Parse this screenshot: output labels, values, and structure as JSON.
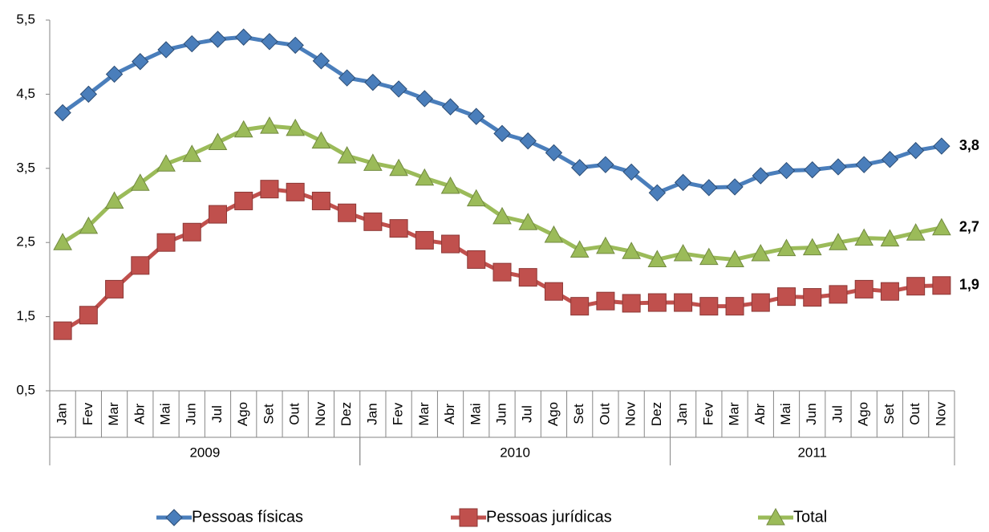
{
  "chart_data": {
    "type": "line",
    "categories": [
      "Jan",
      "Fev",
      "Mar",
      "Abr",
      "Mai",
      "Jun",
      "Jul",
      "Ago",
      "Set",
      "Out",
      "Nov",
      "Dez",
      "Jan",
      "Fev",
      "Mar",
      "Abr",
      "Mai",
      "Jun",
      "Jul",
      "Ago",
      "Set",
      "Out",
      "Nov",
      "Dez",
      "Jan",
      "Fev",
      "Mar",
      "Abr",
      "Mai",
      "Jun",
      "Jul",
      "Ago",
      "Set",
      "Out",
      "Nov"
    ],
    "year_groups": [
      {
        "label": "2009",
        "count": 12
      },
      {
        "label": "2010",
        "count": 12
      },
      {
        "label": "2011",
        "count": 11
      }
    ],
    "ylim": [
      0.5,
      5.5
    ],
    "yticks": [
      {
        "value": 0.5,
        "label": "0,5"
      },
      {
        "value": 1.5,
        "label": "1,5"
      },
      {
        "value": 2.5,
        "label": "2,5"
      },
      {
        "value": 3.5,
        "label": "3,5"
      },
      {
        "value": 4.5,
        "label": "4,5"
      },
      {
        "value": 5.5,
        "label": "5,5"
      }
    ],
    "grid": false,
    "legend": "bottom",
    "series": [
      {
        "name": "Pessoas físicas",
        "color": "#4a7ebb",
        "marker": "diamond",
        "values": [
          4.25,
          4.5,
          4.77,
          4.94,
          5.1,
          5.18,
          5.24,
          5.27,
          5.21,
          5.16,
          4.95,
          4.72,
          4.66,
          4.57,
          4.44,
          4.33,
          4.2,
          3.97,
          3.87,
          3.71,
          3.51,
          3.55,
          3.45,
          3.17,
          3.31,
          3.24,
          3.25,
          3.4,
          3.47,
          3.48,
          3.52,
          3.55,
          3.62,
          3.74,
          3.8
        ],
        "value_labels": [
          null,
          null,
          null,
          null,
          null,
          null,
          null,
          null,
          null,
          null,
          null,
          null,
          null,
          null,
          null,
          null,
          null,
          null,
          null,
          null,
          null,
          null,
          null,
          null,
          null,
          null,
          null,
          null,
          null,
          null,
          null,
          null,
          null,
          null,
          "3,8"
        ]
      },
      {
        "name": "Pessoas jurídicas",
        "color": "#c0504d",
        "marker": "square",
        "values": [
          1.31,
          1.52,
          1.87,
          2.19,
          2.5,
          2.64,
          2.88,
          3.06,
          3.22,
          3.18,
          3.06,
          2.9,
          2.78,
          2.69,
          2.53,
          2.48,
          2.27,
          2.1,
          2.03,
          1.84,
          1.64,
          1.71,
          1.68,
          1.69,
          1.69,
          1.64,
          1.64,
          1.69,
          1.77,
          1.76,
          1.8,
          1.87,
          1.84,
          1.91,
          1.92
        ],
        "value_labels": [
          null,
          null,
          null,
          null,
          null,
          null,
          null,
          null,
          null,
          null,
          null,
          null,
          null,
          null,
          null,
          null,
          null,
          null,
          null,
          null,
          null,
          null,
          null,
          null,
          null,
          null,
          null,
          null,
          null,
          null,
          null,
          null,
          null,
          null,
          "1,9"
        ]
      },
      {
        "name": "Total",
        "color": "#9bbb59",
        "marker": "triangle",
        "values": [
          2.5,
          2.72,
          3.06,
          3.3,
          3.56,
          3.69,
          3.85,
          4.02,
          4.07,
          4.04,
          3.87,
          3.67,
          3.57,
          3.5,
          3.37,
          3.26,
          3.09,
          2.85,
          2.77,
          2.6,
          2.4,
          2.45,
          2.38,
          2.27,
          2.35,
          2.3,
          2.27,
          2.35,
          2.42,
          2.43,
          2.5,
          2.56,
          2.55,
          2.63,
          2.7
        ],
        "value_labels": [
          null,
          null,
          null,
          null,
          null,
          null,
          null,
          null,
          null,
          null,
          null,
          null,
          null,
          null,
          null,
          null,
          null,
          null,
          null,
          null,
          null,
          null,
          null,
          null,
          null,
          null,
          null,
          null,
          null,
          null,
          null,
          null,
          null,
          null,
          "2,7"
        ]
      }
    ]
  }
}
